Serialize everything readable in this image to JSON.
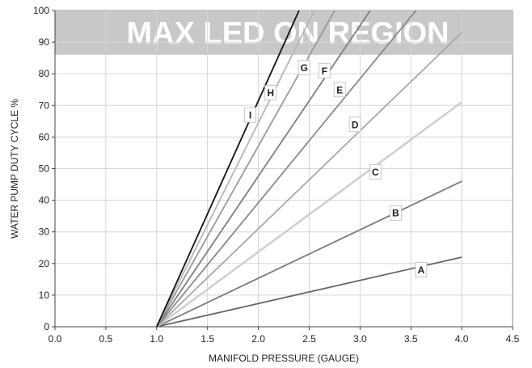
{
  "chart_data": {
    "type": "line",
    "xlabel": "MANIFOLD PRESSURE (GAUGE)",
    "ylabel": "WATER PUMP DUTY CYCLE %",
    "xlim": [
      0.0,
      4.5
    ],
    "ylim": [
      0,
      100
    ],
    "x_ticks": [
      "0.0",
      "0.5",
      "1.0",
      "1.5",
      "2.0",
      "2.5",
      "3.0",
      "3.5",
      "4.0",
      "4.5"
    ],
    "y_ticks": [
      "0",
      "10",
      "20",
      "30",
      "40",
      "50",
      "60",
      "70",
      "80",
      "90",
      "100"
    ],
    "grid": true,
    "region": {
      "label": "MAX LED ON REGION",
      "y_from": 86,
      "y_to": 100,
      "color": "#c8c8c8"
    },
    "series": [
      {
        "name": "A",
        "color": "#666666",
        "x": [
          1.0,
          4.0
        ],
        "y": [
          0,
          22
        ],
        "label_at": [
          3.6,
          18
        ]
      },
      {
        "name": "B",
        "color": "#7a7a7a",
        "x": [
          1.0,
          4.0
        ],
        "y": [
          0,
          46
        ],
        "label_at": [
          3.35,
          36
        ]
      },
      {
        "name": "C",
        "color": "#cfcfcf",
        "x": [
          1.0,
          4.0
        ],
        "y": [
          0,
          71
        ],
        "label_at": [
          3.15,
          49
        ]
      },
      {
        "name": "D",
        "color": "#a8a8a8",
        "x": [
          1.0,
          4.0
        ],
        "y": [
          0,
          93
        ],
        "label_at": [
          2.95,
          64
        ]
      },
      {
        "name": "E",
        "color": "#8a8a8a",
        "x": [
          1.0,
          3.55
        ],
        "y": [
          0,
          100
        ],
        "label_at": [
          2.8,
          75
        ]
      },
      {
        "name": "F",
        "color": "#7e7e7e",
        "x": [
          1.0,
          3.1
        ],
        "y": [
          0,
          100
        ],
        "label_at": [
          2.65,
          81
        ]
      },
      {
        "name": "G",
        "color": "#9a9a9a",
        "x": [
          1.0,
          2.75
        ],
        "y": [
          0,
          100
        ],
        "label_at": [
          2.45,
          82
        ]
      },
      {
        "name": "H",
        "color": "#b5b5b5",
        "x": [
          1.0,
          2.55
        ],
        "y": [
          0,
          100
        ],
        "label_at": [
          2.12,
          74
        ]
      },
      {
        "name": "I",
        "color": "#111111",
        "x": [
          1.0,
          2.4
        ],
        "y": [
          0,
          100
        ],
        "label_at": [
          1.92,
          67
        ]
      }
    ]
  }
}
